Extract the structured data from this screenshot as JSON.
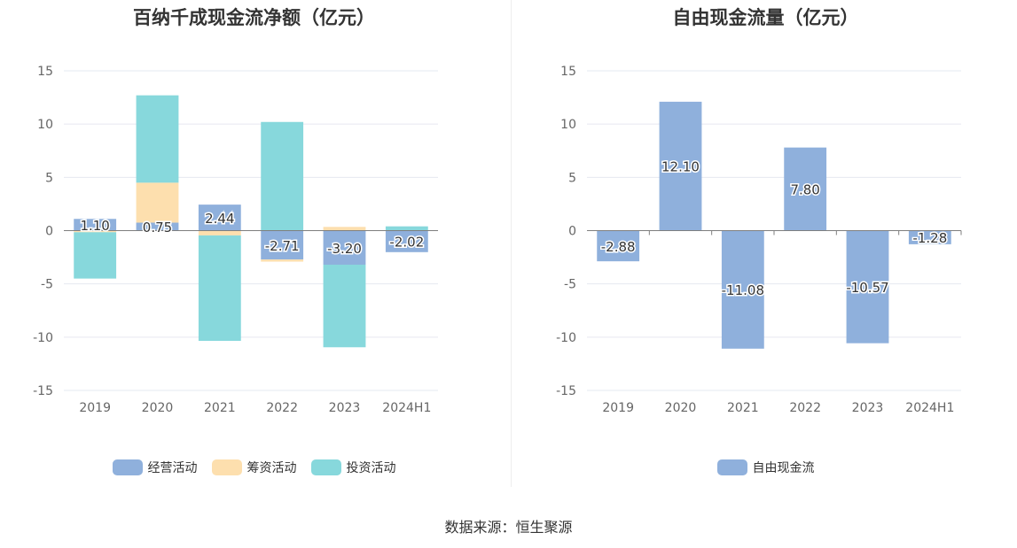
{
  "source_text": "数据来源：恒生聚源",
  "chart_data": [
    {
      "type": "bar",
      "stacked": true,
      "title": "百纳千成现金流净额（亿元）",
      "categories": [
        "2019",
        "2020",
        "2021",
        "2022",
        "2023",
        "2024H1"
      ],
      "ylim": [
        -15,
        15
      ],
      "yticks": [
        15,
        10,
        5,
        0,
        -5,
        -10,
        -15
      ],
      "grid": true,
      "legend_position": "bottom",
      "series": [
        {
          "name": "经营活动",
          "color": "#8fb0dc",
          "values": [
            1.1,
            0.75,
            2.44,
            -2.71,
            -3.2,
            -2.02
          ]
        },
        {
          "name": "筹资活动",
          "color": "#fddfae",
          "values": [
            -0.15,
            3.75,
            -0.45,
            -0.2,
            0.35,
            0.0
          ]
        },
        {
          "name": "投资活动",
          "color": "#87d8dc",
          "values": [
            -4.35,
            8.2,
            -9.9,
            10.2,
            -7.75,
            0.4
          ]
        }
      ],
      "data_labels": [
        "1.10",
        "0.75",
        "2.44",
        "-2.71",
        "-3.20",
        "-2.02"
      ]
    },
    {
      "type": "bar",
      "title": "自由现金流量（亿元）",
      "categories": [
        "2019",
        "2020",
        "2021",
        "2022",
        "2023",
        "2024H1"
      ],
      "ylim": [
        -15,
        15
      ],
      "yticks": [
        15,
        10,
        5,
        0,
        -5,
        -10,
        -15
      ],
      "grid": true,
      "legend_position": "bottom",
      "series": [
        {
          "name": "自由现金流",
          "color": "#8fb0dc",
          "values": [
            -2.88,
            12.1,
            -11.08,
            7.8,
            -10.57,
            -1.28
          ]
        }
      ],
      "data_labels": [
        "-2.88",
        "12.10",
        "-11.08",
        "7.80",
        "-10.57",
        "-1.28"
      ]
    }
  ]
}
